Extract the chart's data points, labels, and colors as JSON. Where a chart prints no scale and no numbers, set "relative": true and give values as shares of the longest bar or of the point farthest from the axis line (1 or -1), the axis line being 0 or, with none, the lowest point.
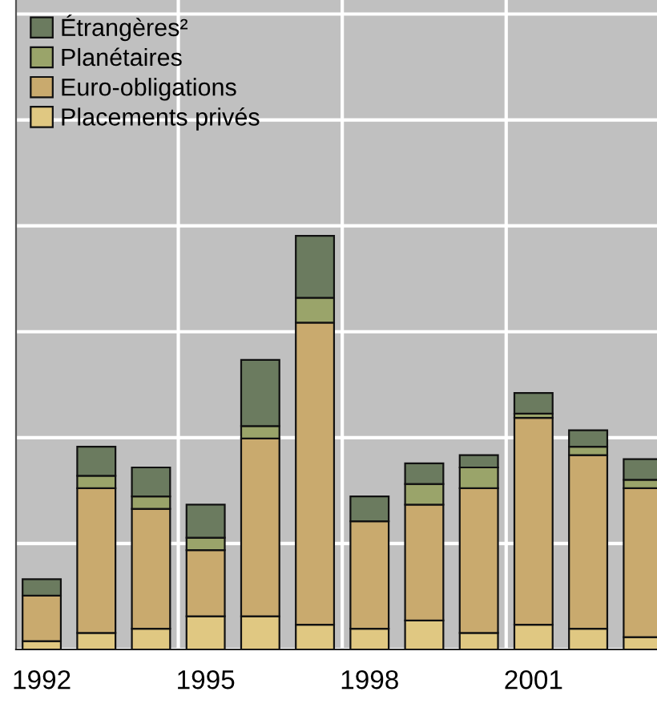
{
  "chart_data": {
    "type": "bar",
    "stacked": true,
    "relative": true,
    "grid": true,
    "legend": "top left",
    "categories": [
      "1992",
      null,
      null,
      "1995",
      null,
      null,
      "1998",
      null,
      null,
      "2001",
      null,
      null
    ],
    "series": [
      {
        "name": "Placements privés",
        "color": "#e0c882",
        "values": [
          0.02,
          0.04,
          0.05,
          0.08,
          0.08,
          0.06,
          0.05,
          0.07,
          0.04,
          0.06,
          0.05,
          0.03
        ]
      },
      {
        "name": "Euro-obligations",
        "color": "#c9aa6e",
        "values": [
          0.11,
          0.35,
          0.29,
          0.16,
          0.43,
          0.73,
          0.26,
          0.28,
          0.35,
          0.5,
          0.42,
          0.36
        ]
      },
      {
        "name": "Planétaires",
        "color": "#9aa46a",
        "values": [
          0,
          0.03,
          0.03,
          0.03,
          0.03,
          0.06,
          0,
          0.05,
          0.05,
          0.01,
          0.02,
          0.02
        ]
      },
      {
        "name": "Étrangères²",
        "color": "#6b7b5f",
        "values": [
          0.04,
          0.07,
          0.07,
          0.08,
          0.16,
          0.15,
          0.06,
          0.05,
          0.03,
          0.05,
          0.04,
          0.05
        ]
      }
    ]
  }
}
